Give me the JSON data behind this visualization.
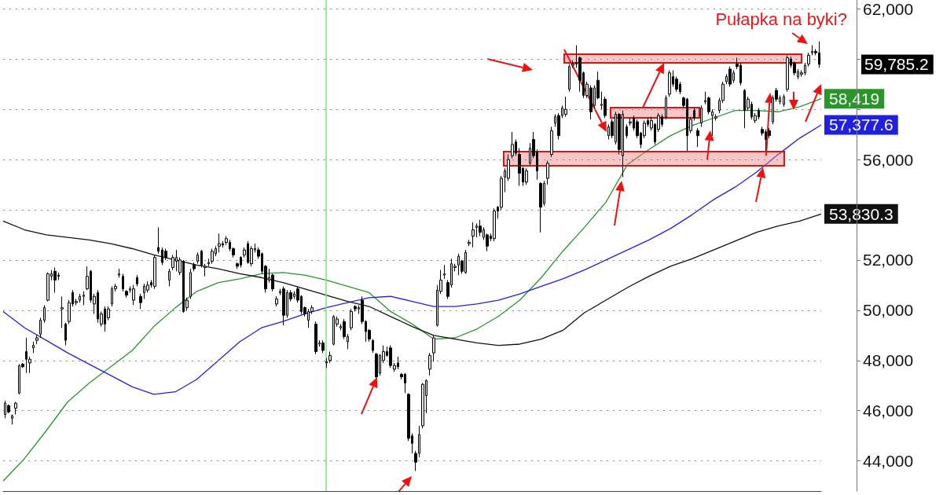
{
  "chart_data": [
    {
      "type": "candlestick",
      "categories": [
        null,
        null,
        null,
        null,
        null,
        null,
        null,
        null,
        null,
        null,
        null,
        null,
        null,
        null,
        null,
        null,
        null,
        null,
        null,
        null,
        null,
        null,
        null,
        null,
        null,
        null,
        null,
        null,
        null,
        null,
        null,
        null,
        null,
        null,
        null,
        null,
        null,
        null,
        null,
        null,
        null,
        null,
        null,
        null,
        null,
        null,
        null,
        null,
        null,
        null,
        null,
        null,
        null,
        null,
        null,
        null,
        null,
        null,
        null,
        null,
        null,
        null,
        null,
        null,
        null,
        null,
        null,
        null,
        null,
        null,
        null,
        null,
        null,
        null,
        null,
        null,
        null,
        null,
        null,
        null,
        null,
        null,
        null,
        null,
        null,
        null,
        null,
        null,
        null,
        null,
        null,
        null,
        null,
        null,
        null,
        null,
        null,
        null,
        null,
        null,
        null,
        null,
        null,
        null,
        null,
        null,
        null,
        null,
        null,
        null,
        null,
        null,
        null,
        null,
        null,
        null,
        null,
        null,
        null,
        null,
        null,
        null,
        null,
        null,
        null,
        null,
        null,
        null,
        null,
        null,
        null,
        null,
        null,
        null,
        null,
        null,
        null,
        null,
        null,
        null,
        null,
        null,
        null,
        null,
        null,
        null,
        null,
        null,
        null,
        null,
        null,
        null,
        null,
        null,
        null,
        null,
        null,
        null,
        null,
        null,
        null,
        null,
        null,
        null,
        null,
        null,
        null,
        null,
        null,
        null,
        null,
        null,
        null,
        null,
        null,
        null,
        null,
        null,
        null,
        null,
        null,
        null,
        null,
        null,
        null,
        null,
        null,
        null,
        null,
        null,
        null,
        null,
        null,
        null,
        null,
        null,
        null,
        null,
        null,
        null,
        null,
        null,
        null,
        null,
        null,
        null,
        null,
        null,
        null,
        null,
        null,
        null,
        null,
        null,
        null,
        null,
        null,
        null,
        null,
        null,
        null,
        null,
        null,
        null,
        null,
        null,
        null,
        null,
        null
      ],
      "ohlc": [
        [
          45850,
          46400,
          45700,
          46300
        ],
        [
          46200,
          46250,
          45900,
          45950
        ],
        [
          45700,
          45850,
          45450,
          45800
        ],
        [
          46100,
          46350,
          45850,
          46300
        ],
        [
          46700,
          47850,
          46650,
          47800
        ],
        [
          47850,
          47900,
          47700,
          47750
        ],
        [
          48350,
          48900,
          47500,
          48050
        ],
        [
          47900,
          48150,
          47500,
          48050
        ],
        [
          48500,
          48750,
          48300,
          48600
        ],
        [
          48800,
          49000,
          48650,
          48900
        ],
        [
          49050,
          49700,
          48900,
          49600
        ],
        [
          49600,
          50200,
          49500,
          50100
        ],
        [
          50400,
          51500,
          50350,
          51450
        ],
        [
          51350,
          51600,
          51200,
          51450
        ],
        [
          51550,
          51700,
          50700,
          51200
        ],
        [
          51400,
          51500,
          51200,
          51350
        ],
        [
          50050,
          50550,
          49300,
          50100
        ],
        [
          49450,
          49500,
          48600,
          48800
        ],
        [
          49550,
          50400,
          49450,
          50300
        ],
        [
          50700,
          50800,
          50150,
          50250
        ],
        [
          50300,
          50450,
          50200,
          50350
        ],
        [
          50400,
          50650,
          50300,
          50550
        ],
        [
          50550,
          50750,
          50200,
          50600
        ],
        [
          50850,
          51750,
          50800,
          51350
        ],
        [
          51550,
          51600,
          50300,
          50400
        ],
        [
          50250,
          50650,
          49850,
          50550
        ],
        [
          50700,
          50800,
          49500,
          49650
        ],
        [
          49450,
          49950,
          49350,
          49850
        ],
        [
          50050,
          50150,
          49150,
          49450
        ],
        [
          49700,
          50150,
          49600,
          50050
        ],
        [
          50250,
          50950,
          50150,
          50850
        ],
        [
          50850,
          51050,
          50750,
          50950
        ],
        [
          51400,
          51650,
          51300,
          51450
        ],
        [
          51350,
          51450,
          50750,
          50850
        ],
        [
          50750,
          50800,
          50500,
          50600
        ],
        [
          50800,
          50950,
          50700,
          50850
        ],
        [
          50400,
          51000,
          50200,
          50850
        ],
        [
          51300,
          51400,
          50950,
          51050
        ],
        [
          50550,
          50650,
          50050,
          50300
        ],
        [
          50700,
          51050,
          50450,
          50950
        ],
        [
          50800,
          51150,
          50700,
          51000
        ],
        [
          51100,
          51200,
          50900,
          51000
        ],
        [
          50950,
          52200,
          50850,
          52100
        ],
        [
          52500,
          53300,
          52250,
          52350
        ],
        [
          52400,
          52500,
          51800,
          51900
        ],
        [
          52350,
          52450,
          52000,
          52100
        ],
        [
          51200,
          51650,
          50950,
          51550
        ],
        [
          51700,
          52200,
          51600,
          52100
        ],
        [
          51950,
          52400,
          51550,
          52100
        ],
        [
          51500,
          52100,
          51400,
          52000
        ],
        [
          51950,
          52000,
          49900,
          49950
        ],
        [
          50100,
          50500,
          50000,
          50400
        ],
        [
          50550,
          51650,
          50450,
          51500
        ],
        [
          51800,
          51900,
          51550,
          51650
        ],
        [
          51950,
          52300,
          51850,
          52200
        ],
        [
          52350,
          52400,
          51700,
          51800
        ],
        [
          51700,
          51850,
          51350,
          51750
        ],
        [
          51850,
          52050,
          51750,
          51900
        ],
        [
          51950,
          52450,
          51850,
          52350
        ],
        [
          52250,
          52550,
          52150,
          52450
        ],
        [
          52550,
          53050,
          52300,
          52650
        ],
        [
          52650,
          52750,
          52500,
          52600
        ],
        [
          52700,
          52950,
          52600,
          52850
        ],
        [
          52700,
          52800,
          52350,
          52450
        ],
        [
          52450,
          52500,
          52100,
          52200
        ],
        [
          51850,
          51900,
          51650,
          51750
        ],
        [
          52100,
          52150,
          51700,
          51800
        ],
        [
          52200,
          52500,
          52100,
          52400
        ],
        [
          52650,
          52750,
          51850,
          51900
        ],
        [
          51850,
          52550,
          51750,
          52450
        ],
        [
          52400,
          52650,
          52300,
          52450
        ],
        [
          52400,
          52500,
          52050,
          52150
        ],
        [
          52250,
          52300,
          51450,
          51550
        ],
        [
          51750,
          51800,
          50700,
          50850
        ],
        [
          51200,
          51650,
          51100,
          51300
        ],
        [
          51400,
          51450,
          50750,
          50850
        ],
        [
          50250,
          50550,
          50150,
          50450
        ],
        [
          50700,
          50850,
          50600,
          50750
        ],
        [
          50850,
          50950,
          49400,
          49800
        ],
        [
          49800,
          50800,
          49700,
          50700
        ],
        [
          50700,
          50800,
          50350,
          50450
        ],
        [
          50550,
          50750,
          50450,
          50650
        ],
        [
          50850,
          50950,
          50300,
          50400
        ],
        [
          50550,
          50600,
          49850,
          49950
        ],
        [
          50100,
          50150,
          49750,
          49850
        ],
        [
          49600,
          50050,
          49300,
          49950
        ],
        [
          49950,
          50200,
          49850,
          50100
        ],
        [
          49450,
          49550,
          48250,
          48350
        ],
        [
          48650,
          48800,
          48550,
          48700
        ],
        [
          48700,
          48800,
          48300,
          48400
        ],
        [
          47900,
          48100,
          47700,
          47950
        ],
        [
          48000,
          48350,
          47900,
          48200
        ],
        [
          48650,
          49800,
          48600,
          49750
        ],
        [
          49450,
          49750,
          49350,
          49650
        ],
        [
          49300,
          49450,
          49200,
          49350
        ],
        [
          49550,
          49650,
          48850,
          48950
        ],
        [
          48750,
          49050,
          48450,
          48950
        ],
        [
          49300,
          50050,
          49200,
          49950
        ],
        [
          50150,
          50200,
          49950,
          50050
        ],
        [
          50050,
          50200,
          49850,
          50100
        ],
        [
          50400,
          50550,
          49450,
          49550
        ],
        [
          49550,
          49600,
          48750,
          49150
        ],
        [
          49200,
          49250,
          48750,
          48850
        ],
        [
          48800,
          48850,
          48300,
          48400
        ],
        [
          48250,
          48300,
          47300,
          47350
        ],
        [
          47500,
          48250,
          47400,
          48200
        ],
        [
          48000,
          48600,
          47900,
          48350
        ],
        [
          48350,
          48550,
          48150,
          48200
        ],
        [
          48500,
          48600,
          47700,
          47800
        ],
        [
          47650,
          47900,
          47550,
          47800
        ],
        [
          47900,
          48150,
          47650,
          47750
        ],
        [
          47450,
          47500,
          47250,
          47350
        ],
        [
          47450,
          47500,
          46700,
          47100
        ],
        [
          46650,
          46700,
          44800,
          44900
        ],
        [
          45000,
          45100,
          44300,
          44700
        ],
        [
          44300,
          44400,
          43600,
          43950
        ],
        [
          44300,
          45400,
          44150,
          45050
        ],
        [
          45400,
          47100,
          45300,
          47050
        ],
        [
          46600,
          47250,
          45900,
          47200
        ],
        [
          47650,
          48300,
          47400,
          48200
        ],
        [
          48300,
          49000,
          47950,
          48900
        ],
        [
          49400,
          51000,
          49350,
          50800
        ],
        [
          50750,
          51600,
          50650,
          51200
        ],
        [
          51400,
          51800,
          51250,
          51450
        ],
        [
          51100,
          51200,
          50450,
          50550
        ],
        [
          51000,
          52050,
          50900,
          51850
        ],
        [
          51700,
          51850,
          51550,
          51750
        ],
        [
          51800,
          52250,
          51400,
          52150
        ],
        [
          51950,
          52000,
          51450,
          51550
        ],
        [
          51500,
          52400,
          51450,
          52300
        ],
        [
          52650,
          52800,
          52550,
          52700
        ],
        [
          52950,
          53500,
          52500,
          53200
        ],
        [
          53300,
          53450,
          52900,
          53350
        ],
        [
          53350,
          53600,
          52950,
          53100
        ],
        [
          52900,
          53300,
          52800,
          53200
        ],
        [
          53000,
          53050,
          52350,
          52550
        ],
        [
          52950,
          53050,
          52750,
          52850
        ],
        [
          52850,
          54050,
          52750,
          53950
        ],
        [
          54100,
          54150,
          53650,
          53950
        ],
        [
          54100,
          55350,
          54000,
          55250
        ],
        [
          55300,
          55650,
          54700,
          55550
        ],
        [
          55250,
          56200,
          55150,
          56000
        ],
        [
          56150,
          57100,
          56050,
          56600
        ],
        [
          56700,
          56800,
          56150,
          56250
        ],
        [
          56200,
          56450,
          54950,
          55450
        ],
        [
          55650,
          55700,
          54950,
          55100
        ],
        [
          55100,
          55650,
          55000,
          55550
        ],
        [
          55850,
          56650,
          55750,
          56450
        ],
        [
          56800,
          57100,
          56050,
          56150
        ],
        [
          56300,
          56400,
          55200,
          55550
        ],
        [
          55050,
          55100,
          53100,
          54100
        ],
        [
          54250,
          55150,
          54150,
          55050
        ],
        [
          55250,
          55950,
          55000,
          55850
        ],
        [
          56200,
          57300,
          56100,
          57150
        ],
        [
          57450,
          57800,
          57300,
          57700
        ],
        [
          57750,
          57850,
          56800,
          56950
        ],
        [
          57750,
          58150,
          57650,
          58050
        ],
        [
          57800,
          58500,
          57700,
          58000
        ],
        [
          58800,
          59800,
          58700,
          59700
        ],
        [
          59750,
          59950,
          59650,
          59800
        ],
        [
          59850,
          60550,
          59650,
          59800
        ],
        [
          60050,
          60100,
          58700,
          59150
        ],
        [
          59450,
          59500,
          58450,
          58550
        ],
        [
          58550,
          59100,
          58450,
          59000
        ],
        [
          58850,
          58950,
          57600,
          57900
        ],
        [
          58150,
          58950,
          58050,
          58850
        ],
        [
          59150,
          59500,
          58400,
          58450
        ],
        [
          58150,
          58700,
          58000,
          58200
        ],
        [
          58400,
          58500,
          57650,
          57750
        ],
        [
          56950,
          57400,
          56800,
          57300
        ],
        [
          57500,
          57600,
          56850,
          56950
        ],
        [
          56700,
          57900,
          56600,
          57800
        ],
        [
          57800,
          57850,
          56200,
          56400
        ],
        [
          56150,
          57950,
          55300,
          57800
        ],
        [
          57300,
          57400,
          56850,
          56950
        ],
        [
          57450,
          57650,
          57350,
          57500
        ],
        [
          57650,
          57750,
          57150,
          57250
        ],
        [
          57500,
          57600,
          56850,
          56950
        ],
        [
          57050,
          57100,
          56450,
          56600
        ],
        [
          56950,
          57550,
          56850,
          57450
        ],
        [
          57550,
          57650,
          57300,
          57400
        ],
        [
          57250,
          57700,
          57150,
          57550
        ],
        [
          57400,
          57450,
          56600,
          56700
        ],
        [
          57200,
          57850,
          57100,
          57750
        ],
        [
          57700,
          57800,
          57300,
          57400
        ],
        [
          57700,
          58550,
          57600,
          58450
        ],
        [
          58600,
          59550,
          58500,
          59450
        ],
        [
          59300,
          59550,
          58900,
          59000
        ],
        [
          59200,
          59300,
          58700,
          58800
        ],
        [
          59000,
          59100,
          58600,
          58700
        ],
        [
          58450,
          58500,
          58050,
          58150
        ],
        [
          58400,
          58450,
          56350,
          56950
        ],
        [
          57150,
          57700,
          57050,
          57600
        ],
        [
          57950,
          58050,
          57550,
          57650
        ],
        [
          57150,
          57250,
          56500,
          56950
        ],
        [
          57450,
          58150,
          57300,
          58050
        ],
        [
          58300,
          58700,
          58200,
          58350
        ],
        [
          58450,
          58500,
          57800,
          57900
        ],
        [
          57750,
          58000,
          56950,
          57900
        ],
        [
          57650,
          57800,
          57550,
          57700
        ],
        [
          57950,
          58450,
          57850,
          58350
        ],
        [
          58350,
          59100,
          58250,
          59000
        ],
        [
          59100,
          59400,
          59000,
          59300
        ],
        [
          59600,
          59700,
          58900,
          59000
        ],
        [
          59150,
          59550,
          59050,
          59450
        ],
        [
          59800,
          60050,
          59600,
          59700
        ],
        [
          59750,
          59850,
          58950,
          59050
        ],
        [
          58750,
          58800,
          57250,
          57950
        ],
        [
          58050,
          58500,
          57950,
          58400
        ],
        [
          58200,
          58300,
          57600,
          57700
        ],
        [
          57550,
          57850,
          57450,
          57750
        ],
        [
          57950,
          58050,
          57600,
          57700
        ],
        [
          57200,
          57300,
          56950,
          57050
        ],
        [
          57100,
          57200,
          56350,
          56800
        ],
        [
          57150,
          57250,
          56850,
          56950
        ],
        [
          57500,
          58550,
          57400,
          58450
        ],
        [
          58750,
          58850,
          58300,
          58400
        ],
        [
          58300,
          58550,
          58200,
          58450
        ],
        [
          58200,
          58600,
          58100,
          58500
        ],
        [
          58800,
          60150,
          58700,
          60050
        ],
        [
          60000,
          60100,
          59650,
          59750
        ],
        [
          59850,
          59900,
          59350,
          59450
        ],
        [
          59300,
          59600,
          59200,
          59500
        ],
        [
          59400,
          59550,
          59300,
          59450
        ],
        [
          59450,
          59850,
          59350,
          59750
        ],
        [
          59800,
          60250,
          59700,
          60150
        ],
        [
          60250,
          60550,
          60150,
          60300
        ],
        [
          60300,
          60400,
          60150,
          60250
        ],
        [
          60250,
          60700,
          59650,
          59785.2
        ]
      ],
      "ylim": [
        42800,
        62350
      ],
      "yticks": [
        {
          "value": 44000,
          "label": "44,000"
        },
        {
          "value": 46000,
          "label": "46,000"
        },
        {
          "value": 48000,
          "label": "48,000"
        },
        {
          "value": 50000,
          "label": "50,000"
        },
        {
          "value": 52000,
          "label": "52,000"
        },
        {
          "value": 54000,
          "label": null
        },
        {
          "value": 56000,
          "label": "56,000"
        },
        {
          "value": 58000,
          "label": null
        },
        {
          "value": 60000,
          "label": null
        },
        {
          "value": 62000,
          "label": "62,000"
        }
      ],
      "tick_labels": "y",
      "grid": "y",
      "annotations": [
        "Pułapka na byki?",
        "59,785.2"
      ]
    },
    {
      "type": "line",
      "series": [
        {
          "color": "#2a962a",
          "values": [
            43200,
            44100,
            45200,
            46350,
            47100,
            47750,
            48400,
            49350,
            50100,
            50750,
            51100,
            51250,
            51450,
            51500,
            51400,
            51200,
            50950,
            50700,
            49950,
            49450,
            48850,
            48900,
            49250,
            49750,
            50400,
            51300,
            52350,
            53300,
            54300,
            55800,
            56400,
            56950,
            57350,
            57650,
            57950,
            57950,
            57900,
            58100,
            58419
          ],
          "value_labels": [
            null,
            null,
            null,
            null,
            null,
            null,
            null,
            null,
            null,
            null,
            null,
            null,
            null,
            null,
            null,
            null,
            null,
            null,
            null,
            null,
            null,
            null,
            null,
            null,
            null,
            null,
            null,
            null,
            null,
            null,
            null,
            null,
            null,
            null,
            null,
            null,
            null,
            null,
            "58,419"
          ]
        }
      ],
      "categories": [
        null,
        null,
        null,
        null,
        null,
        null,
        null,
        null,
        null,
        null,
        null,
        null,
        null,
        null,
        null,
        null,
        null,
        null,
        null,
        null,
        null,
        null,
        null,
        null,
        null,
        null,
        null,
        null,
        null,
        null,
        null,
        null,
        null,
        null,
        null,
        null,
        null,
        null,
        null
      ],
      "ylim": [
        42800,
        62350
      ],
      "tick_labels": false,
      "marker": "none",
      "line_style": "solid"
    },
    {
      "type": "line",
      "series": [
        {
          "color": "#2020e0",
          "values": [
            49950,
            49300,
            48800,
            48300,
            47850,
            47400,
            46950,
            46650,
            46750,
            47250,
            48000,
            48750,
            49300,
            49550,
            49850,
            50100,
            50300,
            50500,
            50550,
            50350,
            50150,
            50150,
            50250,
            50400,
            50650,
            50950,
            51250,
            51600,
            52000,
            52400,
            52800,
            53250,
            53800,
            54400,
            54900,
            55500,
            56200,
            56850,
            57377.6
          ],
          "value_labels": [
            null,
            null,
            null,
            null,
            null,
            null,
            null,
            null,
            null,
            null,
            null,
            null,
            null,
            null,
            null,
            null,
            null,
            null,
            null,
            null,
            null,
            null,
            null,
            null,
            null,
            null,
            null,
            null,
            null,
            null,
            null,
            null,
            null,
            null,
            null,
            null,
            null,
            null,
            "57,377.6"
          ]
        }
      ],
      "categories": [
        null,
        null,
        null,
        null,
        null,
        null,
        null,
        null,
        null,
        null,
        null,
        null,
        null,
        null,
        null,
        null,
        null,
        null,
        null,
        null,
        null,
        null,
        null,
        null,
        null,
        null,
        null,
        null,
        null,
        null,
        null,
        null,
        null,
        null,
        null,
        null,
        null,
        null,
        null
      ],
      "ylim": [
        42800,
        62350
      ],
      "tick_labels": false,
      "marker": "none",
      "line_style": "solid"
    },
    {
      "type": "line",
      "series": [
        {
          "color": "#111111",
          "values": [
            53550,
            53200,
            53000,
            52900,
            52800,
            52650,
            52450,
            52200,
            52000,
            51800,
            51650,
            51450,
            51300,
            51100,
            50850,
            50600,
            50350,
            50150,
            49750,
            49350,
            49000,
            48850,
            48700,
            48600,
            48650,
            48850,
            49200,
            49900,
            50400,
            50900,
            51350,
            51750,
            52050,
            52400,
            52750,
            53100,
            53350,
            53550,
            53830.3
          ],
          "value_labels": [
            null,
            null,
            null,
            null,
            null,
            null,
            null,
            null,
            null,
            null,
            null,
            null,
            null,
            null,
            null,
            null,
            null,
            null,
            null,
            null,
            null,
            null,
            null,
            null,
            null,
            null,
            null,
            null,
            null,
            null,
            null,
            null,
            null,
            null,
            null,
            null,
            null,
            null,
            "53,830.3"
          ]
        }
      ],
      "categories": [
        null,
        null,
        null,
        null,
        null,
        null,
        null,
        null,
        null,
        null,
        null,
        null,
        null,
        null,
        null,
        null,
        null,
        null,
        null,
        null,
        null,
        null,
        null,
        null,
        null,
        null,
        null,
        null,
        null,
        null,
        null,
        null,
        null,
        null,
        null,
        null,
        null,
        null,
        null
      ],
      "ylim": [
        42800,
        62350
      ],
      "tick_labels": false,
      "marker": "none",
      "line_style": "solid"
    }
  ]
}
